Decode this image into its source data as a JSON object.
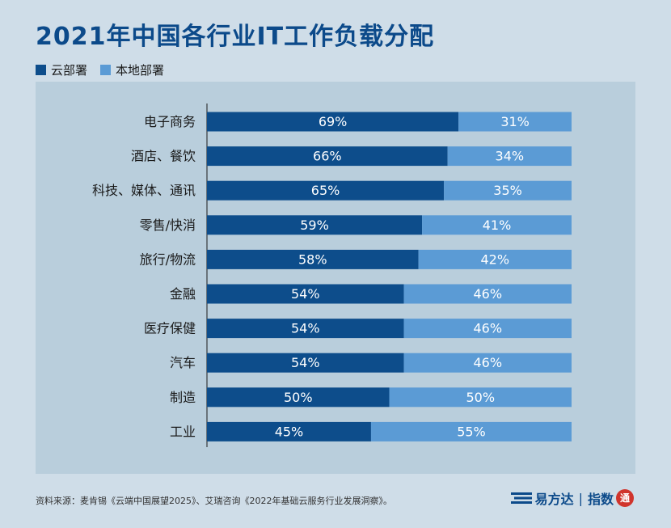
{
  "title": "2021年中国各行业IT工作负载分配",
  "legend": [
    {
      "name": "云部署",
      "color": "#0d4d8b"
    },
    {
      "name": "本地部署",
      "color": "#5b9bd5"
    }
  ],
  "chart_data": {
    "type": "bar",
    "orientation": "horizontal",
    "stacked": true,
    "percent": true,
    "categories": [
      "电子商务",
      "酒店、餐饮",
      "科技、媒体、通讯",
      "零售/快消",
      "旅行/物流",
      "金融",
      "医疗保健",
      "汽车",
      "制造",
      "工业"
    ],
    "series": [
      {
        "name": "云部署",
        "values": [
          69,
          66,
          65,
          59,
          58,
          54,
          54,
          54,
          50,
          45
        ],
        "color": "#0d4d8b"
      },
      {
        "name": "本地部署",
        "values": [
          31,
          34,
          35,
          41,
          42,
          46,
          46,
          46,
          50,
          55
        ],
        "color": "#5b9bd5"
      }
    ],
    "xlim": [
      0,
      100
    ],
    "grid": false,
    "legend_position": "top-left"
  },
  "source": "资料来源：麦肯锡《云端中国展望2025》、艾瑞咨询《2022年基础云服务行业发展洞察》。",
  "brand": {
    "name": "易方达",
    "sub": "指数",
    "seal": "通"
  }
}
